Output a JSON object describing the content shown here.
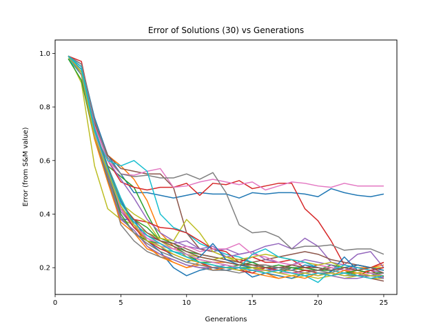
{
  "chart_data": {
    "type": "line",
    "title": "Error of Solutions (30) vs Generations",
    "xlabel": "Generations",
    "ylabel": "Error (from S&M value)",
    "xlim": [
      0,
      26
    ],
    "ylim": [
      0.1,
      1.05
    ],
    "xticks": [
      0,
      5,
      10,
      15,
      20,
      25
    ],
    "xtick_labels": [
      "0",
      "5",
      "10",
      "15",
      "20",
      "25"
    ],
    "yticks": [
      0.2,
      0.4,
      0.6,
      0.8,
      1.0
    ],
    "ytick_labels": [
      "0.2",
      "0.4",
      "0.6",
      "0.8",
      "1.0"
    ],
    "grid": false,
    "legend": false,
    "x": [
      1,
      2,
      3,
      4,
      5,
      6,
      7,
      8,
      9,
      10,
      11,
      12,
      13,
      14,
      15,
      16,
      17,
      18,
      19,
      20,
      21,
      22,
      23,
      24,
      25
    ],
    "series": [
      {
        "color": "#1f77b4",
        "values": [
          0.99,
          0.96,
          0.76,
          0.62,
          0.55,
          0.48,
          0.48,
          0.47,
          0.46,
          0.47,
          0.48,
          0.475,
          0.475,
          0.46,
          0.48,
          0.475,
          0.48,
          0.48,
          0.475,
          0.465,
          0.495,
          0.48,
          0.47,
          0.465,
          0.475
        ]
      },
      {
        "color": "#ff7f0e",
        "values": [
          0.99,
          0.95,
          0.73,
          0.62,
          0.58,
          0.53,
          0.45,
          0.33,
          0.28,
          0.24,
          0.23,
          0.22,
          0.22,
          0.21,
          0.2,
          0.2,
          0.19,
          0.19,
          0.2,
          0.19,
          0.2,
          0.19,
          0.2,
          0.2,
          0.21
        ]
      },
      {
        "color": "#2ca02c",
        "values": [
          0.99,
          0.94,
          0.72,
          0.58,
          0.54,
          0.5,
          0.4,
          0.31,
          0.29,
          0.26,
          0.25,
          0.24,
          0.23,
          0.22,
          0.21,
          0.2,
          0.21,
          0.2,
          0.2,
          0.19,
          0.19,
          0.18,
          0.18,
          0.17,
          0.17
        ]
      },
      {
        "color": "#d62728",
        "values": [
          0.99,
          0.97,
          0.74,
          0.6,
          0.52,
          0.5,
          0.49,
          0.5,
          0.5,
          0.515,
          0.47,
          0.515,
          0.51,
          0.525,
          0.495,
          0.505,
          0.515,
          0.515,
          0.42,
          0.375,
          0.3,
          0.21,
          0.2,
          0.19,
          0.165
        ]
      },
      {
        "color": "#9467bd",
        "values": [
          0.99,
          0.95,
          0.75,
          0.6,
          0.53,
          0.46,
          0.38,
          0.33,
          0.3,
          0.28,
          0.27,
          0.26,
          0.27,
          0.25,
          0.26,
          0.28,
          0.29,
          0.27,
          0.31,
          0.28,
          0.22,
          0.21,
          0.25,
          0.26,
          0.2
        ]
      },
      {
        "color": "#8c564b",
        "values": [
          0.99,
          0.96,
          0.74,
          0.62,
          0.57,
          0.56,
          0.55,
          0.55,
          0.5,
          0.33,
          0.27,
          0.26,
          0.24,
          0.23,
          0.22,
          0.23,
          0.24,
          0.25,
          0.26,
          0.25,
          0.23,
          0.22,
          0.21,
          0.2,
          0.22
        ]
      },
      {
        "color": "#e377c2",
        "values": [
          0.99,
          0.95,
          0.73,
          0.6,
          0.55,
          0.545,
          0.56,
          0.57,
          0.5,
          0.505,
          0.52,
          0.53,
          0.52,
          0.51,
          0.52,
          0.49,
          0.505,
          0.52,
          0.515,
          0.505,
          0.5,
          0.515,
          0.505,
          0.505,
          0.505
        ]
      },
      {
        "color": "#7f7f7f",
        "values": [
          0.99,
          0.96,
          0.75,
          0.61,
          0.55,
          0.54,
          0.545,
          0.535,
          0.535,
          0.55,
          0.53,
          0.555,
          0.48,
          0.36,
          0.33,
          0.335,
          0.315,
          0.27,
          0.28,
          0.28,
          0.285,
          0.265,
          0.27,
          0.27,
          0.25
        ]
      },
      {
        "color": "#bcbd22",
        "values": [
          0.99,
          0.89,
          0.58,
          0.42,
          0.38,
          0.36,
          0.33,
          0.31,
          0.3,
          0.38,
          0.33,
          0.26,
          0.24,
          0.22,
          0.2,
          0.18,
          0.17,
          0.16,
          0.17,
          0.16,
          0.17,
          0.16,
          0.17,
          0.16,
          0.16
        ]
      },
      {
        "color": "#17becf",
        "values": [
          0.98,
          0.92,
          0.7,
          0.6,
          0.58,
          0.6,
          0.56,
          0.4,
          0.35,
          0.33,
          0.29,
          0.27,
          0.25,
          0.24,
          0.22,
          0.2,
          0.19,
          0.18,
          0.17,
          0.145,
          0.19,
          0.18,
          0.17,
          0.17,
          0.16
        ]
      },
      {
        "color": "#1f77b4",
        "values": [
          0.99,
          0.93,
          0.69,
          0.53,
          0.38,
          0.38,
          0.3,
          0.26,
          0.2,
          0.17,
          0.19,
          0.2,
          0.19,
          0.2,
          0.165,
          0.18,
          0.17,
          0.16,
          0.18,
          0.17,
          0.185,
          0.24,
          0.19,
          0.18,
          0.16
        ]
      },
      {
        "color": "#ff7f0e",
        "values": [
          0.99,
          0.94,
          0.7,
          0.56,
          0.46,
          0.36,
          0.28,
          0.24,
          0.22,
          0.2,
          0.22,
          0.19,
          0.2,
          0.2,
          0.18,
          0.17,
          0.16,
          0.17,
          0.18,
          0.19,
          0.2,
          0.19,
          0.18,
          0.19,
          0.2
        ]
      },
      {
        "color": "#2ca02c",
        "values": [
          0.98,
          0.9,
          0.68,
          0.58,
          0.42,
          0.38,
          0.35,
          0.3,
          0.28,
          0.25,
          0.22,
          0.21,
          0.2,
          0.21,
          0.22,
          0.2,
          0.19,
          0.21,
          0.2,
          0.19,
          0.21,
          0.2,
          0.21,
          0.2,
          0.19
        ]
      },
      {
        "color": "#d62728",
        "values": [
          0.99,
          0.95,
          0.72,
          0.58,
          0.44,
          0.38,
          0.37,
          0.35,
          0.345,
          0.33,
          0.3,
          0.27,
          0.26,
          0.22,
          0.24,
          0.22,
          0.22,
          0.23,
          0.2,
          0.21,
          0.2,
          0.19,
          0.21,
          0.2,
          0.22
        ]
      },
      {
        "color": "#9467bd",
        "values": [
          0.99,
          0.93,
          0.7,
          0.57,
          0.41,
          0.35,
          0.32,
          0.3,
          0.29,
          0.3,
          0.27,
          0.28,
          0.24,
          0.25,
          0.26,
          0.23,
          0.22,
          0.21,
          0.23,
          0.22,
          0.21,
          0.19,
          0.2,
          0.19,
          0.18
        ]
      },
      {
        "color": "#8c564b",
        "values": [
          0.99,
          0.94,
          0.71,
          0.58,
          0.42,
          0.37,
          0.32,
          0.3,
          0.29,
          0.27,
          0.25,
          0.24,
          0.23,
          0.22,
          0.21,
          0.21,
          0.2,
          0.2,
          0.19,
          0.19,
          0.2,
          0.19,
          0.17,
          0.16,
          0.15
        ]
      },
      {
        "color": "#e377c2",
        "values": [
          0.99,
          0.94,
          0.7,
          0.56,
          0.43,
          0.36,
          0.31,
          0.28,
          0.27,
          0.28,
          0.26,
          0.27,
          0.27,
          0.29,
          0.25,
          0.24,
          0.22,
          0.21,
          0.22,
          0.21,
          0.2,
          0.19,
          0.19,
          0.18,
          0.17
        ]
      },
      {
        "color": "#7f7f7f",
        "values": [
          0.99,
          0.93,
          0.69,
          0.54,
          0.36,
          0.3,
          0.26,
          0.24,
          0.23,
          0.21,
          0.2,
          0.19,
          0.19,
          0.18,
          0.19,
          0.2,
          0.19,
          0.2,
          0.19,
          0.18,
          0.18,
          0.2,
          0.19,
          0.18,
          0.17
        ]
      },
      {
        "color": "#bcbd22",
        "values": [
          0.99,
          0.94,
          0.71,
          0.58,
          0.44,
          0.4,
          0.37,
          0.3,
          0.27,
          0.25,
          0.24,
          0.23,
          0.24,
          0.23,
          0.24,
          0.25,
          0.24,
          0.23,
          0.22,
          0.21,
          0.22,
          0.2,
          0.19,
          0.2,
          0.2
        ]
      },
      {
        "color": "#17becf",
        "values": [
          0.99,
          0.95,
          0.72,
          0.58,
          0.46,
          0.36,
          0.3,
          0.27,
          0.26,
          0.25,
          0.23,
          0.22,
          0.21,
          0.2,
          0.25,
          0.27,
          0.24,
          0.23,
          0.22,
          0.2,
          0.19,
          0.21,
          0.2,
          0.19,
          0.2
        ]
      },
      {
        "color": "#1f77b4",
        "values": [
          0.99,
          0.94,
          0.7,
          0.56,
          0.45,
          0.36,
          0.3,
          0.28,
          0.24,
          0.22,
          0.24,
          0.29,
          0.23,
          0.21,
          0.2,
          0.19,
          0.2,
          0.19,
          0.21,
          0.2,
          0.19,
          0.2,
          0.21,
          0.2,
          0.19
        ]
      },
      {
        "color": "#ff7f0e",
        "values": [
          0.99,
          0.92,
          0.68,
          0.52,
          0.37,
          0.33,
          0.27,
          0.25,
          0.22,
          0.2,
          0.21,
          0.2,
          0.2,
          0.2,
          0.19,
          0.18,
          0.16,
          0.17,
          0.16,
          0.18,
          0.17,
          0.19,
          0.18,
          0.17,
          0.17
        ]
      },
      {
        "color": "#2ca02c",
        "values": [
          0.99,
          0.93,
          0.69,
          0.56,
          0.4,
          0.33,
          0.3,
          0.29,
          0.26,
          0.24,
          0.22,
          0.22,
          0.21,
          0.2,
          0.2,
          0.19,
          0.18,
          0.2,
          0.19,
          0.18,
          0.17,
          0.18,
          0.19,
          0.18,
          0.18
        ]
      },
      {
        "color": "#d62728",
        "values": [
          0.99,
          0.94,
          0.71,
          0.57,
          0.42,
          0.35,
          0.3,
          0.27,
          0.25,
          0.23,
          0.22,
          0.2,
          0.2,
          0.19,
          0.18,
          0.2,
          0.19,
          0.18,
          0.19,
          0.18,
          0.17,
          0.18,
          0.17,
          0.19,
          0.2
        ]
      },
      {
        "color": "#9467bd",
        "values": [
          0.99,
          0.93,
          0.7,
          0.55,
          0.38,
          0.34,
          0.28,
          0.25,
          0.23,
          0.21,
          0.2,
          0.2,
          0.21,
          0.2,
          0.19,
          0.19,
          0.19,
          0.18,
          0.17,
          0.18,
          0.17,
          0.16,
          0.16,
          0.17,
          0.16
        ]
      },
      {
        "color": "#8c564b",
        "values": [
          0.99,
          0.94,
          0.71,
          0.58,
          0.44,
          0.38,
          0.33,
          0.3,
          0.28,
          0.26,
          0.24,
          0.23,
          0.22,
          0.21,
          0.21,
          0.2,
          0.2,
          0.21,
          0.2,
          0.2,
          0.19,
          0.2,
          0.19,
          0.2,
          0.18
        ]
      },
      {
        "color": "#e377c2",
        "values": [
          0.99,
          0.93,
          0.7,
          0.56,
          0.42,
          0.36,
          0.31,
          0.29,
          0.27,
          0.25,
          0.23,
          0.22,
          0.21,
          0.2,
          0.19,
          0.19,
          0.18,
          0.18,
          0.18,
          0.17,
          0.18,
          0.17,
          0.17,
          0.18,
          0.17
        ]
      },
      {
        "color": "#7f7f7f",
        "values": [
          0.99,
          0.92,
          0.69,
          0.55,
          0.39,
          0.33,
          0.29,
          0.26,
          0.24,
          0.22,
          0.21,
          0.2,
          0.2,
          0.19,
          0.2,
          0.21,
          0.2,
          0.19,
          0.18,
          0.19,
          0.18,
          0.17,
          0.17,
          0.17,
          0.18
        ]
      },
      {
        "color": "#bcbd22",
        "values": [
          0.99,
          0.93,
          0.69,
          0.56,
          0.43,
          0.36,
          0.3,
          0.28,
          0.25,
          0.23,
          0.22,
          0.21,
          0.2,
          0.19,
          0.2,
          0.19,
          0.18,
          0.17,
          0.18,
          0.17,
          0.18,
          0.17,
          0.18,
          0.17,
          0.17
        ]
      },
      {
        "color": "#17becf",
        "values": [
          0.99,
          0.94,
          0.71,
          0.57,
          0.44,
          0.37,
          0.32,
          0.29,
          0.26,
          0.24,
          0.22,
          0.21,
          0.2,
          0.2,
          0.19,
          0.18,
          0.19,
          0.18,
          0.17,
          0.18,
          0.17,
          0.18,
          0.17,
          0.16,
          0.17
        ]
      }
    ]
  }
}
